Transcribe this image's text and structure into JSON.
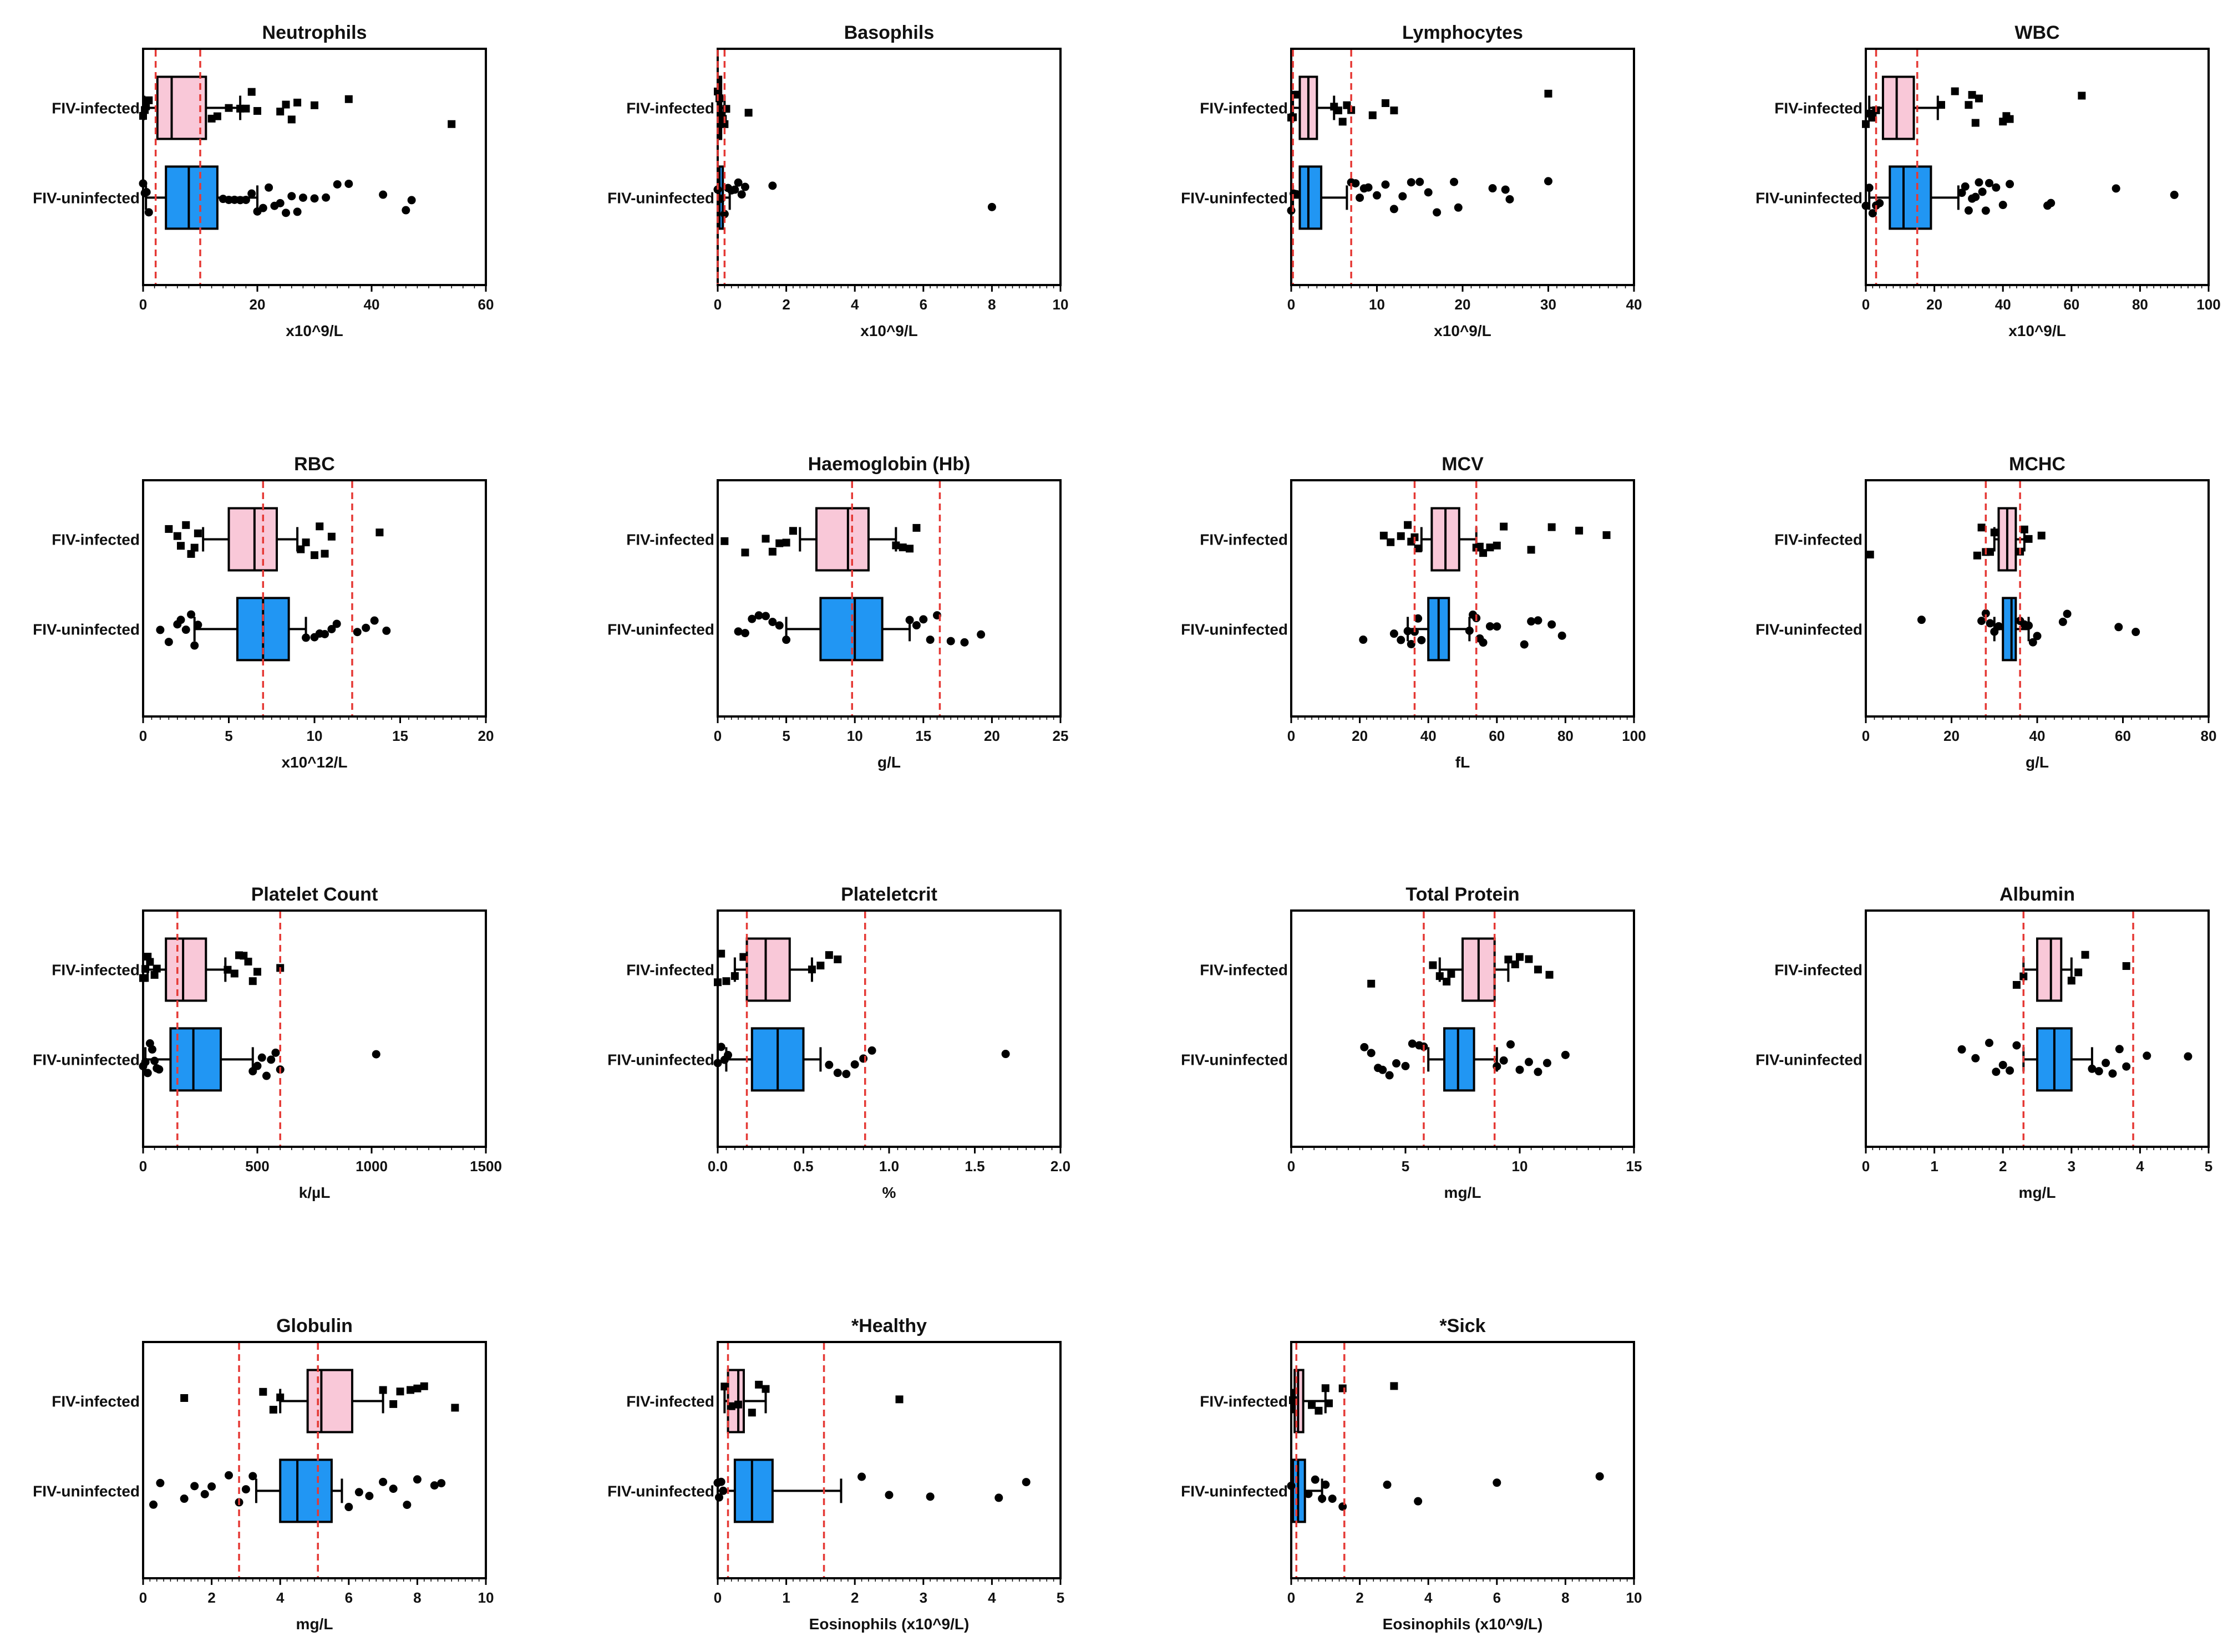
{
  "figure": {
    "colors": {
      "infected_fill": "#f9c8d8",
      "uninfected_fill": "#2196f3",
      "reference_line": "#e53935",
      "points": "#000000",
      "axes": "#000000"
    },
    "groups": [
      "FIV-infected",
      "FIV-uninfected"
    ]
  },
  "chart_data": [
    {
      "type": "box",
      "title": "Neutrophils",
      "xlabel": "x10^9/L",
      "xlim": [
        0,
        60
      ],
      "xticks": [
        0,
        20,
        40,
        60
      ],
      "reference_lines": [
        2.2,
        10
      ],
      "series": [
        {
          "name": "FIV-infected",
          "box": {
            "whisker_low": 0.2,
            "q1": 2.5,
            "median": 5,
            "q3": 11,
            "whisker_high": 17
          },
          "points": [
            0,
            0.3,
            0.5,
            1,
            12,
            13,
            15,
            17,
            18,
            19,
            20,
            24,
            25,
            26,
            27,
            30,
            36,
            54
          ]
        },
        {
          "name": "FIV-uninfected",
          "box": {
            "whisker_low": 0.5,
            "q1": 4,
            "median": 8,
            "q3": 13,
            "whisker_high": 20
          },
          "points": [
            0,
            0.3,
            0.6,
            1,
            14,
            15,
            16,
            17,
            18,
            19,
            20,
            21,
            22,
            23,
            24,
            25,
            26,
            27,
            28,
            30,
            32,
            34,
            36,
            42,
            46,
            47
          ]
        }
      ]
    },
    {
      "type": "box",
      "title": "Basophils",
      "xlabel": "x10^9/L",
      "xlim": [
        0,
        10
      ],
      "xticks": [
        0,
        2,
        4,
        6,
        8,
        10
      ],
      "reference_lines": [
        0,
        0.2
      ],
      "series": [
        {
          "name": "FIV-infected",
          "box": {
            "whisker_low": 0,
            "q1": 0,
            "median": 0.05,
            "q3": 0.1,
            "whisker_high": 0.2
          },
          "points": [
            0,
            0.05,
            0.1,
            0.15,
            0.2,
            0.25,
            0.9
          ]
        },
        {
          "name": "FIV-uninfected",
          "box": {
            "whisker_low": 0,
            "q1": 0,
            "median": 0.05,
            "q3": 0.15,
            "whisker_high": 0.35
          },
          "points": [
            0,
            0.1,
            0.2,
            0.3,
            0.4,
            0.5,
            0.6,
            0.7,
            0.8,
            1.6,
            8
          ]
        }
      ]
    },
    {
      "type": "box",
      "title": "Lymphocytes",
      "xlabel": "x10^9/L",
      "xlim": [
        0,
        40
      ],
      "xticks": [
        0,
        10,
        20,
        30,
        40
      ],
      "reference_lines": [
        0.2,
        7
      ],
      "series": [
        {
          "name": "FIV-infected",
          "box": {
            "whisker_low": 0.2,
            "q1": 1,
            "median": 2,
            "q3": 3,
            "whisker_high": 5
          },
          "points": [
            0,
            0.2,
            0.5,
            5,
            5.5,
            6,
            6.5,
            7,
            9.5,
            11,
            12,
            30
          ]
        },
        {
          "name": "FIV-uninfected",
          "box": {
            "whisker_low": 0.2,
            "q1": 1,
            "median": 2,
            "q3": 3.5,
            "whisker_high": 6.5
          },
          "points": [
            0,
            0.3,
            0.6,
            7,
            7.5,
            8,
            8.5,
            9,
            10,
            11,
            12,
            13,
            14,
            15,
            16,
            17,
            19,
            19.5,
            23.5,
            25,
            25.5,
            30
          ]
        }
      ]
    },
    {
      "type": "box",
      "title": "WBC",
      "xlabel": "x10^9/L",
      "xlim": [
        0,
        100
      ],
      "xticks": [
        0,
        20,
        40,
        60,
        80,
        100
      ],
      "reference_lines": [
        3,
        15
      ],
      "series": [
        {
          "name": "FIV-infected",
          "box": {
            "whisker_low": 1,
            "q1": 5,
            "median": 9,
            "q3": 14,
            "whisker_high": 21
          },
          "points": [
            0,
            1,
            2,
            3,
            22,
            26,
            30,
            31,
            32,
            33,
            40,
            41,
            42,
            63
          ]
        },
        {
          "name": "FIV-uninfected",
          "box": {
            "whisker_low": 1,
            "q1": 7,
            "median": 11,
            "q3": 19,
            "whisker_high": 27
          },
          "points": [
            0,
            1,
            2,
            3,
            4,
            28,
            29,
            30,
            31,
            32,
            33,
            34,
            35,
            36,
            38,
            40,
            42,
            53,
            54,
            73,
            90
          ]
        }
      ]
    },
    {
      "type": "box",
      "title": "RBC",
      "xlabel": "x10^12/L",
      "xlim": [
        0,
        20
      ],
      "xticks": [
        0,
        5,
        10,
        15,
        20
      ],
      "reference_lines": [
        7,
        12.2
      ],
      "series": [
        {
          "name": "FIV-infected",
          "box": {
            "whisker_low": 3.5,
            "q1": 5,
            "median": 6.5,
            "q3": 7.8,
            "whisker_high": 9
          },
          "points": [
            1.5,
            2,
            2.2,
            2.5,
            2.8,
            3,
            3.2,
            9.2,
            9.5,
            10,
            10.3,
            10.6,
            11,
            13.8
          ]
        },
        {
          "name": "FIV-uninfected",
          "box": {
            "whisker_low": 3,
            "q1": 5.5,
            "median": 7,
            "q3": 8.5,
            "whisker_high": 9.5
          },
          "points": [
            1,
            1.5,
            2,
            2.2,
            2.5,
            2.8,
            3,
            3.2,
            9.5,
            10,
            10.3,
            10.6,
            11,
            11.3,
            12.5,
            13,
            13.5,
            14.2
          ]
        }
      ]
    },
    {
      "type": "box",
      "title": "Haemoglobin (Hb)",
      "xlabel": "g/L",
      "xlim": [
        0,
        25
      ],
      "xticks": [
        0,
        5,
        10,
        15,
        20,
        25
      ],
      "reference_lines": [
        9.8,
        16.2
      ],
      "series": [
        {
          "name": "FIV-infected",
          "box": {
            "whisker_low": 6,
            "q1": 7.2,
            "median": 9.5,
            "q3": 11,
            "whisker_high": 13
          },
          "points": [
            0.5,
            2,
            3.5,
            4,
            4.5,
            5,
            5.5,
            13,
            13.5,
            14,
            14.5
          ]
        },
        {
          "name": "FIV-uninfected",
          "box": {
            "whisker_low": 5,
            "q1": 7.5,
            "median": 10,
            "q3": 12,
            "whisker_high": 14
          },
          "points": [
            1.5,
            2,
            2.5,
            3,
            3.5,
            4,
            4.5,
            5,
            14,
            14.5,
            15,
            15.5,
            16,
            17,
            18,
            19.2
          ]
        }
      ]
    },
    {
      "type": "box",
      "title": "MCV",
      "xlabel": "fL",
      "xlim": [
        0,
        100
      ],
      "xticks": [
        0,
        20,
        40,
        60,
        80,
        100
      ],
      "reference_lines": [
        36,
        54
      ],
      "series": [
        {
          "name": "FIV-infected",
          "box": {
            "whisker_low": 38,
            "q1": 41,
            "median": 45,
            "q3": 49,
            "whisker_high": 54
          },
          "points": [
            27,
            29,
            32,
            34,
            35,
            36,
            37,
            54,
            55,
            56,
            58,
            60,
            62,
            70,
            76,
            84,
            92
          ]
        },
        {
          "name": "FIV-uninfected",
          "box": {
            "whisker_low": 34,
            "q1": 40,
            "median": 43,
            "q3": 46,
            "whisker_high": 52
          },
          "points": [
            21,
            30,
            32,
            34,
            35,
            36,
            37,
            38,
            52,
            53,
            54,
            55,
            56,
            58,
            60,
            68,
            70,
            72,
            76,
            79
          ]
        }
      ]
    },
    {
      "type": "box",
      "title": "MCHC",
      "xlabel": "g/L",
      "xlim": [
        0,
        80
      ],
      "xticks": [
        0,
        20,
        40,
        60,
        80
      ],
      "reference_lines": [
        28,
        36
      ],
      "series": [
        {
          "name": "FIV-infected",
          "box": {
            "whisker_low": 30,
            "q1": 31,
            "median": 33,
            "q3": 35,
            "whisker_high": 37
          },
          "points": [
            1,
            26,
            27,
            28,
            29,
            30,
            36,
            37,
            38,
            41
          ]
        },
        {
          "name": "FIV-uninfected",
          "box": {
            "whisker_low": 30,
            "q1": 32,
            "median": 34,
            "q3": 35,
            "whisker_high": 38
          },
          "points": [
            13,
            27,
            28,
            29,
            30,
            31,
            36,
            37,
            38,
            39,
            40,
            46,
            47,
            59,
            63
          ]
        }
      ]
    },
    {
      "type": "box",
      "title": "Platelet Count",
      "xlabel": "k/µL",
      "xlim": [
        0,
        1500
      ],
      "xticks": [
        0,
        500,
        1000,
        1500
      ],
      "reference_lines": [
        150,
        600
      ],
      "series": [
        {
          "name": "FIV-infected",
          "box": {
            "whisker_low": 20,
            "q1": 100,
            "median": 175,
            "q3": 275,
            "whisker_high": 360
          },
          "points": [
            0,
            10,
            20,
            30,
            50,
            60,
            370,
            400,
            420,
            440,
            460,
            480,
            500,
            600
          ]
        },
        {
          "name": "FIV-uninfected",
          "box": {
            "whisker_low": 10,
            "q1": 120,
            "median": 220,
            "q3": 340,
            "whisker_high": 480
          },
          "points": [
            0,
            10,
            20,
            30,
            40,
            50,
            60,
            70,
            480,
            500,
            520,
            540,
            560,
            580,
            600,
            1020
          ]
        }
      ]
    },
    {
      "type": "box",
      "title": "Plateletcrit",
      "xlabel": "%",
      "xlim": [
        0,
        2.0
      ],
      "xticks": [
        0.0,
        0.5,
        1.0,
        1.5,
        2.0
      ],
      "reference_lines": [
        0.17,
        0.86
      ],
      "series": [
        {
          "name": "FIV-infected",
          "box": {
            "whisker_low": 0.1,
            "q1": 0.17,
            "median": 0.28,
            "q3": 0.42,
            "whisker_high": 0.55
          },
          "points": [
            0,
            0.02,
            0.05,
            0.1,
            0.15,
            0.55,
            0.6,
            0.65,
            0.7
          ]
        },
        {
          "name": "FIV-uninfected",
          "box": {
            "whisker_low": 0.05,
            "q1": 0.2,
            "median": 0.35,
            "q3": 0.5,
            "whisker_high": 0.6
          },
          "points": [
            0,
            0.02,
            0.04,
            0.06,
            0.65,
            0.7,
            0.75,
            0.8,
            0.85,
            0.9,
            1.68
          ]
        }
      ]
    },
    {
      "type": "box",
      "title": "Total Protein",
      "xlabel": "mg/L",
      "xlim": [
        0,
        15
      ],
      "xticks": [
        0,
        5,
        10,
        15
      ],
      "reference_lines": [
        5.8,
        8.9
      ],
      "series": [
        {
          "name": "FIV-infected",
          "box": {
            "whisker_low": 6.5,
            "q1": 7.5,
            "median": 8.2,
            "q3": 8.9,
            "whisker_high": 9.5
          },
          "points": [
            3.5,
            6.2,
            6.5,
            6.8,
            7,
            9.5,
            9.8,
            10,
            10.4,
            10.8,
            11.3
          ]
        },
        {
          "name": "FIV-uninfected",
          "box": {
            "whisker_low": 6,
            "q1": 6.7,
            "median": 7.3,
            "q3": 8,
            "whisker_high": 9
          },
          "points": [
            3.2,
            3.5,
            3.8,
            4,
            4.3,
            4.6,
            5,
            5.3,
            5.6,
            5.8,
            9,
            9.3,
            9.6,
            10,
            10.4,
            10.8,
            11.2,
            12
          ]
        }
      ]
    },
    {
      "type": "box",
      "title": "Albumin",
      "xlabel": "mg/L",
      "xlim": [
        0,
        5
      ],
      "xticks": [
        0,
        1,
        2,
        3,
        4,
        5
      ],
      "reference_lines": [
        2.3,
        3.9
      ],
      "series": [
        {
          "name": "FIV-infected",
          "box": {
            "whisker_low": 2.3,
            "q1": 2.5,
            "median": 2.7,
            "q3": 2.85,
            "whisker_high": 3
          },
          "points": [
            2.2,
            2.3,
            3,
            3.1,
            3.2,
            3.8
          ]
        },
        {
          "name": "FIV-uninfected",
          "box": {
            "whisker_low": 2.3,
            "q1": 2.5,
            "median": 2.75,
            "q3": 3,
            "whisker_high": 3.3
          },
          "points": [
            1.4,
            1.6,
            1.8,
            1.9,
            2,
            2.1,
            2.2,
            3.3,
            3.4,
            3.5,
            3.6,
            3.7,
            3.8,
            4.1,
            4.7
          ]
        }
      ]
    },
    {
      "type": "box",
      "title": "Globulin",
      "xlabel": "mg/L",
      "xlim": [
        0,
        10
      ],
      "xticks": [
        0,
        2,
        4,
        6,
        8,
        10
      ],
      "reference_lines": [
        2.8,
        5.1
      ],
      "series": [
        {
          "name": "FIV-infected",
          "box": {
            "whisker_low": 4,
            "q1": 4.8,
            "median": 5.2,
            "q3": 6.1,
            "whisker_high": 7
          },
          "points": [
            1.2,
            3.5,
            3.8,
            4,
            7,
            7.3,
            7.5,
            7.8,
            8,
            8.2,
            9.1
          ]
        },
        {
          "name": "FIV-uninfected",
          "box": {
            "whisker_low": 3.3,
            "q1": 4,
            "median": 4.5,
            "q3": 5.5,
            "whisker_high": 5.8
          },
          "points": [
            0.3,
            0.5,
            1.2,
            1.5,
            1.8,
            2,
            2.5,
            2.8,
            3,
            3.2,
            6,
            6.3,
            6.6,
            7,
            7.3,
            7.7,
            8,
            8.5,
            8.7
          ]
        }
      ]
    },
    {
      "type": "box",
      "title": "*Healthy",
      "xlabel": "Eosinophils (x10^9/L)",
      "xlim": [
        0,
        5
      ],
      "xticks": [
        0,
        1,
        2,
        3,
        4,
        5
      ],
      "reference_lines": [
        0.15,
        1.55
      ],
      "series": [
        {
          "name": "FIV-infected",
          "box": {
            "whisker_low": 0.1,
            "q1": 0.15,
            "median": 0.3,
            "q3": 0.38,
            "whisker_high": 0.7
          },
          "points": [
            0.1,
            0.2,
            0.3,
            0.5,
            0.6,
            0.7,
            2.65
          ]
        },
        {
          "name": "FIV-uninfected",
          "box": {
            "whisker_low": 0,
            "q1": 0.25,
            "median": 0.5,
            "q3": 0.8,
            "whisker_high": 1.8
          },
          "points": [
            0,
            0.02,
            0.05,
            0.08,
            2.1,
            2.5,
            3.1,
            4.1,
            4.5
          ]
        }
      ]
    },
    {
      "type": "box",
      "title": "*Sick",
      "xlabel": "Eosinophils (x10^9/L)",
      "xlim": [
        0,
        10
      ],
      "xticks": [
        0,
        2,
        4,
        6,
        8,
        10
      ],
      "reference_lines": [
        0.15,
        1.55
      ],
      "series": [
        {
          "name": "FIV-infected",
          "box": {
            "whisker_low": 0.05,
            "q1": 0.1,
            "median": 0.2,
            "q3": 0.35,
            "whisker_high": 1
          },
          "points": [
            0.05,
            0.6,
            0.8,
            1,
            1.1,
            1.5,
            3
          ]
        },
        {
          "name": "FIV-uninfected",
          "box": {
            "whisker_low": 0,
            "q1": 0.05,
            "median": 0.2,
            "q3": 0.4,
            "whisker_high": 0.9
          },
          "points": [
            0,
            0.5,
            0.7,
            0.9,
            1,
            1.2,
            1.5,
            2.8,
            3.7,
            6,
            9
          ]
        }
      ]
    }
  ]
}
